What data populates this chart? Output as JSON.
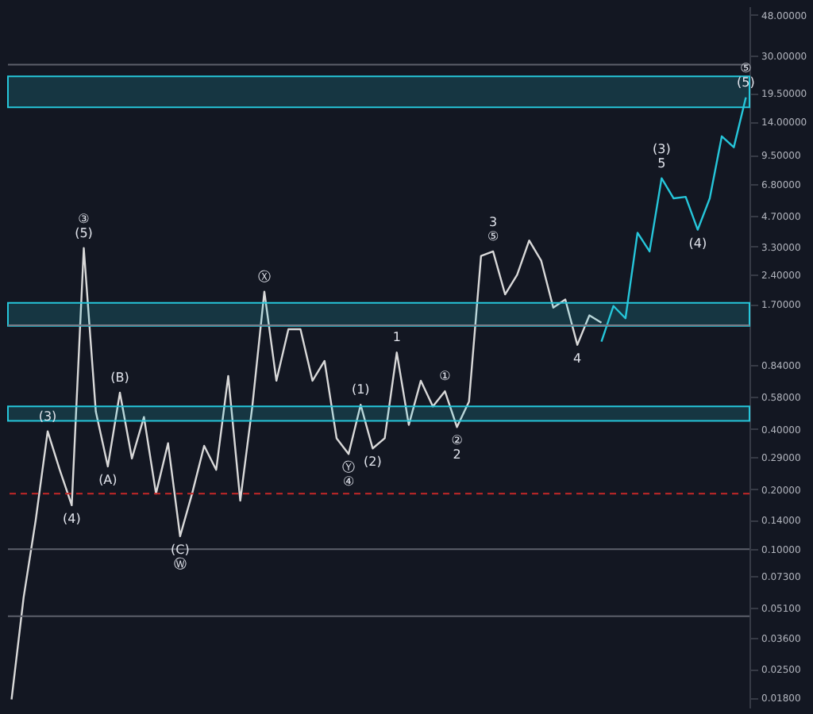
{
  "chart_data": {
    "type": "line",
    "log": true,
    "grid": false,
    "tick_labels": "y",
    "categories": [
      null,
      null,
      null,
      null,
      null,
      null,
      null,
      null,
      null,
      null,
      null,
      null,
      null,
      null,
      null,
      null,
      null,
      null,
      null,
      null,
      null,
      null,
      null,
      null,
      null,
      null,
      null,
      null,
      null,
      null,
      null,
      null,
      null,
      null,
      null,
      null,
      null,
      null,
      null,
      null,
      null,
      null,
      null,
      null,
      null,
      null,
      null,
      null,
      null,
      null,
      null,
      null,
      null,
      null,
      null,
      null,
      null,
      null,
      null,
      null,
      null,
      null
    ],
    "ylim": [
      0.016,
      53
    ],
    "yticks": [
      {
        "value": 48,
        "label": "48.00000"
      },
      {
        "value": 30,
        "label": "30.00000"
      },
      {
        "value": 19.5,
        "label": "19.50000"
      },
      {
        "value": 14,
        "label": "14.00000"
      },
      {
        "value": 9.5,
        "label": "9.50000"
      },
      {
        "value": 6.8,
        "label": "6.80000"
      },
      {
        "value": 4.7,
        "label": "4.70000"
      },
      {
        "value": 3.3,
        "label": "3.30000"
      },
      {
        "value": 2.4,
        "label": "2.40000"
      },
      {
        "value": 1.7,
        "label": "1.70000"
      },
      {
        "value": 0.84,
        "label": "0.84000"
      },
      {
        "value": 0.58,
        "label": "0.58000"
      },
      {
        "value": 0.4,
        "label": "0.40000"
      },
      {
        "value": 0.29,
        "label": "0.29000"
      },
      {
        "value": 0.2,
        "label": "0.20000"
      },
      {
        "value": 0.14,
        "label": "0.14000"
      },
      {
        "value": 0.1,
        "label": "0.10000"
      },
      {
        "value": 0.073,
        "label": "0.07300"
      },
      {
        "value": 0.051,
        "label": "0.05100"
      },
      {
        "value": 0.036,
        "label": "0.03600"
      },
      {
        "value": 0.025,
        "label": "0.02500"
      },
      {
        "value": 0.018,
        "label": "0.01800"
      }
    ],
    "series": [
      {
        "color": "#d9d9d9",
        "values": [
          0.0176,
          0.057,
          0.139,
          0.39,
          0.25,
          0.166,
          3.24,
          0.49,
          0.26,
          0.61,
          0.285,
          0.46,
          0.19,
          0.34,
          0.116,
          0.19,
          0.33,
          0.25,
          0.74,
          0.175,
          0.52,
          1.96,
          0.7,
          1.27,
          1.27,
          0.7,
          0.88,
          0.36,
          0.3,
          0.53,
          0.32,
          0.36,
          0.97,
          0.42,
          0.7,
          0.52,
          0.62,
          0.41,
          0.55,
          2.96,
          3.12,
          1.9,
          2.38,
          3.54,
          2.8,
          1.63,
          1.79,
          1.06,
          1.49,
          1.37,
          null,
          null,
          null,
          null,
          null,
          null,
          null,
          null,
          null,
          null,
          null,
          null
        ]
      },
      {
        "color": "#26c6da",
        "values": [
          null,
          null,
          null,
          null,
          null,
          null,
          null,
          null,
          null,
          null,
          null,
          null,
          null,
          null,
          null,
          null,
          null,
          null,
          null,
          null,
          null,
          null,
          null,
          null,
          null,
          null,
          null,
          null,
          null,
          null,
          null,
          null,
          null,
          null,
          null,
          null,
          null,
          null,
          null,
          null,
          null,
          null,
          null,
          null,
          null,
          null,
          null,
          null,
          null,
          1.1,
          1.66,
          1.44,
          3.87,
          3.12,
          7.27,
          5.76,
          5.86,
          4.01,
          5.76,
          11.8,
          10.4,
          18.5
        ]
      }
    ],
    "annotations": [
      {
        "text": "(3)",
        "y": 0.39
      },
      {
        "text": "(4)",
        "y": 0.166
      },
      {
        "text": "③",
        "y": 3.24
      },
      {
        "text": "(5)",
        "y": 3.24
      },
      {
        "text": "(A)",
        "y": 0.26
      },
      {
        "text": "(B)",
        "y": 0.61
      },
      {
        "text": "(C)",
        "y": 0.116
      },
      {
        "text": "Ⓦ",
        "y": 0.116
      },
      {
        "text": "Ⓧ",
        "y": 1.96
      },
      {
        "text": "Ⓨ",
        "y": 0.3
      },
      {
        "text": "④",
        "y": 0.3
      },
      {
        "text": "(1)",
        "y": 0.53
      },
      {
        "text": "(2)",
        "y": 0.32
      },
      {
        "text": "1",
        "y": 0.97
      },
      {
        "text": "①",
        "y": 0.62
      },
      {
        "text": "②",
        "y": 0.41
      },
      {
        "text": "2",
        "y": 0.41
      },
      {
        "text": "3",
        "y": 3.12
      },
      {
        "text": "⑤",
        "y": 3.12
      },
      {
        "text": "4",
        "y": 1.06
      },
      {
        "text": "(3)",
        "y": 7.27
      },
      {
        "text": "5",
        "y": 7.27
      },
      {
        "text": "(4)",
        "y": 4.01
      },
      {
        "text": "⑤",
        "y": 18.5
      },
      {
        "text": "(5)",
        "y": 18.5
      }
    ],
    "bands": [
      {
        "axis": "y",
        "from": 1.32,
        "to": 1.72,
        "color": "#26c6da"
      },
      {
        "axis": "y",
        "from": 0.44,
        "to": 0.52,
        "color": "#26c6da"
      },
      {
        "axis": "y",
        "from": 16.5,
        "to": 23.6,
        "color": "#26c6da"
      }
    ],
    "ref_lines": [
      {
        "axis": "y",
        "value": 0.19,
        "color": "#c62828",
        "line_style": "dashed"
      },
      {
        "axis": "y",
        "value": 1.33,
        "color": "#787b86",
        "line_style": "solid"
      },
      {
        "axis": "y",
        "value": 0.1,
        "color": "#5d606b",
        "line_style": "solid"
      },
      {
        "axis": "y",
        "value": 0.046,
        "color": "#5d606b",
        "line_style": "solid"
      },
      {
        "axis": "y",
        "value": 27,
        "color": "#5d606b",
        "line_style": "solid"
      }
    ]
  }
}
